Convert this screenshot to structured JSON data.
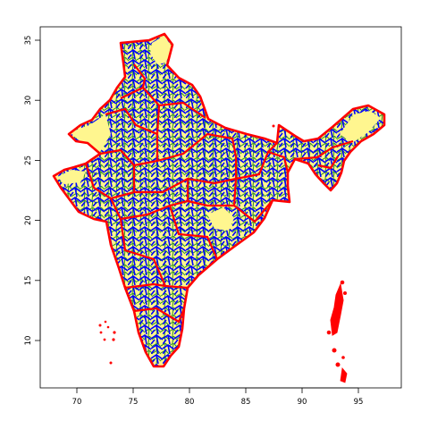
{
  "map": {
    "x_ticks": [
      "70",
      "75",
      "80",
      "85",
      "90",
      "95"
    ],
    "y_ticks": [
      "10",
      "15",
      "20",
      "25",
      "30",
      "35"
    ],
    "xlim": [
      67,
      98.5
    ],
    "ylim": [
      6,
      36.5
    ],
    "colors": {
      "fill": "#fff68f",
      "country_outline": "#ff0000",
      "district_lines": "#0000ff",
      "subdistrict_lines": "#228b22"
    }
  }
}
